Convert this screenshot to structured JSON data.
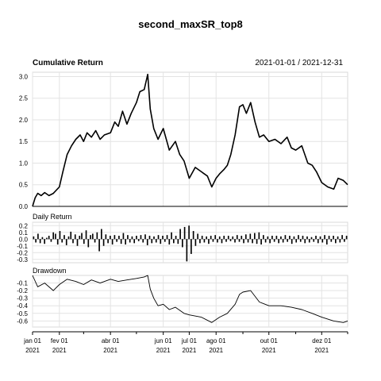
{
  "title": "second_maxSR_top8",
  "date_range": "2021-01-01 / 2021-12-31",
  "chart_data": [
    {
      "type": "line",
      "title": "Cumulative Return",
      "ylim": [
        0.0,
        3.1
      ],
      "yticks": [
        "0.0",
        "0.5",
        "1.0",
        "1.5",
        "2.0",
        "2.5",
        "3.0"
      ],
      "grid": true,
      "x": [
        "2021-01-01",
        "2021-01-04",
        "2021-01-07",
        "2021-01-11",
        "2021-01-15",
        "2021-01-20",
        "2021-01-25",
        "2021-02-01",
        "2021-02-05",
        "2021-02-10",
        "2021-02-15",
        "2021-02-20",
        "2021-02-25",
        "2021-03-01",
        "2021-03-05",
        "2021-03-10",
        "2021-03-15",
        "2021-03-20",
        "2021-03-25",
        "2021-04-01",
        "2021-04-06",
        "2021-04-10",
        "2021-04-15",
        "2021-04-20",
        "2021-04-25",
        "2021-05-01",
        "2021-05-05",
        "2021-05-10",
        "2021-05-14",
        "2021-05-17",
        "2021-05-21",
        "2021-05-26",
        "2021-06-01",
        "2021-06-08",
        "2021-06-15",
        "2021-06-20",
        "2021-06-25",
        "2021-07-01",
        "2021-07-08",
        "2021-07-15",
        "2021-07-22",
        "2021-07-27",
        "2021-08-01",
        "2021-08-05",
        "2021-08-10",
        "2021-08-14",
        "2021-08-18",
        "2021-08-23",
        "2021-08-28",
        "2021-09-01",
        "2021-09-05",
        "2021-09-10",
        "2021-09-15",
        "2021-09-20",
        "2021-09-25",
        "2021-10-01",
        "2021-10-08",
        "2021-10-15",
        "2021-10-22",
        "2021-10-27",
        "2021-11-01",
        "2021-11-08",
        "2021-11-15",
        "2021-11-20",
        "2021-11-25",
        "2021-12-01",
        "2021-12-08",
        "2021-12-15",
        "2021-12-20",
        "2021-12-26",
        "2021-12-31"
      ],
      "series": [
        {
          "values": [
            0.0,
            0.2,
            0.3,
            0.25,
            0.32,
            0.25,
            0.3,
            0.45,
            0.8,
            1.2,
            1.4,
            1.55,
            1.65,
            1.5,
            1.7,
            1.6,
            1.75,
            1.55,
            1.65,
            1.7,
            1.95,
            1.85,
            2.2,
            1.9,
            2.15,
            2.4,
            2.65,
            2.7,
            3.05,
            2.25,
            1.8,
            1.55,
            1.8,
            1.3,
            1.5,
            1.2,
            1.05,
            0.65,
            0.9,
            0.8,
            0.7,
            0.45,
            0.65,
            0.75,
            0.85,
            0.95,
            1.2,
            1.65,
            2.3,
            2.35,
            2.15,
            2.4,
            1.95,
            1.6,
            1.65,
            1.5,
            1.55,
            1.45,
            1.6,
            1.35,
            1.3,
            1.4,
            1.0,
            0.95,
            0.8,
            0.55,
            0.45,
            0.4,
            0.65,
            0.6,
            0.5
          ]
        }
      ]
    },
    {
      "type": "bar",
      "title": "Daily Return",
      "ylim": [
        -0.35,
        0.25
      ],
      "yticks": [
        "0.2",
        "0.1",
        "0.0",
        "-0.1",
        "-0.2",
        "-0.3"
      ],
      "grid": true,
      "series": [
        {
          "values": [
            0.04,
            -0.05,
            0.08,
            -0.06,
            0.03,
            -0.07,
            0.02,
            0.05,
            -0.04,
            0.1,
            0.08,
            -0.08,
            0.12,
            -0.05,
            0.06,
            -0.09,
            0.04,
            0.11,
            -0.06,
            0.07,
            -0.1,
            0.05,
            0.09,
            -0.07,
            0.13,
            -0.12,
            0.06,
            0.08,
            -0.05,
            0.1,
            -0.18,
            0.15,
            -0.1,
            0.07,
            -0.06,
            0.05,
            -0.08,
            0.06,
            -0.04,
            0.05,
            -0.07,
            0.09,
            -0.08,
            0.06,
            -0.05,
            0.04,
            -0.06,
            0.05,
            -0.03,
            0.06,
            -0.05,
            0.07,
            -0.09,
            0.05,
            -0.06,
            0.04,
            -0.05,
            0.06,
            -0.07,
            0.05,
            -0.04,
            0.06,
            -0.08,
            0.1,
            -0.06,
            0.05,
            -0.07,
            0.15,
            -0.12,
            0.18,
            -0.33,
            0.2,
            -0.22,
            0.12,
            -0.1,
            0.08,
            -0.06,
            0.05,
            -0.05,
            0.04,
            -0.07,
            0.05,
            -0.04,
            0.06,
            -0.05,
            0.04,
            -0.06,
            0.05,
            -0.04,
            0.05,
            -0.03,
            0.04,
            -0.05,
            0.06,
            -0.04,
            0.05,
            -0.06,
            0.07,
            -0.05,
            0.08,
            -0.06,
            0.09,
            -0.07,
            0.1,
            -0.08,
            0.06,
            -0.05,
            0.04,
            -0.06,
            0.05,
            -0.04,
            0.05,
            -0.06,
            0.04,
            -0.05,
            0.06,
            -0.04,
            0.05,
            -0.07,
            0.04,
            -0.05,
            0.06,
            -0.04,
            0.05,
            -0.06,
            0.04,
            -0.05,
            0.03,
            -0.04,
            0.05,
            -0.06,
            0.04,
            -0.05,
            0.06,
            -0.08,
            0.05,
            -0.04,
            0.05,
            -0.06,
            0.04,
            -0.05,
            0.06,
            -0.04,
            0.05
          ]
        }
      ]
    },
    {
      "type": "area",
      "title": "Drawdown",
      "ylim": [
        -0.68,
        0.0
      ],
      "yticks": [
        "-0.1",
        "-0.2",
        "-0.3",
        "-0.4",
        "-0.5",
        "-0.6"
      ],
      "grid": true,
      "x": [
        "2021-01-01",
        "2021-01-07",
        "2021-01-15",
        "2021-01-25",
        "2021-02-01",
        "2021-02-10",
        "2021-02-20",
        "2021-03-01",
        "2021-03-10",
        "2021-03-20",
        "2021-04-01",
        "2021-04-10",
        "2021-04-20",
        "2021-05-01",
        "2021-05-10",
        "2021-05-14",
        "2021-05-17",
        "2021-05-21",
        "2021-05-26",
        "2021-06-01",
        "2021-06-08",
        "2021-06-15",
        "2021-06-25",
        "2021-07-01",
        "2021-07-15",
        "2021-07-27",
        "2021-08-05",
        "2021-08-14",
        "2021-08-23",
        "2021-08-28",
        "2021-09-01",
        "2021-09-10",
        "2021-09-20",
        "2021-10-01",
        "2021-10-15",
        "2021-10-27",
        "2021-11-08",
        "2021-11-20",
        "2021-12-01",
        "2021-12-15",
        "2021-12-26",
        "2021-12-31"
      ],
      "series": [
        {
          "values": [
            0.0,
            -0.15,
            -0.1,
            -0.2,
            -0.12,
            -0.05,
            -0.08,
            -0.12,
            -0.06,
            -0.1,
            -0.05,
            -0.08,
            -0.06,
            -0.04,
            -0.02,
            0.0,
            -0.18,
            -0.3,
            -0.4,
            -0.38,
            -0.45,
            -0.42,
            -0.5,
            -0.52,
            -0.55,
            -0.62,
            -0.55,
            -0.5,
            -0.38,
            -0.25,
            -0.22,
            -0.2,
            -0.35,
            -0.4,
            -0.4,
            -0.42,
            -0.45,
            -0.5,
            -0.55,
            -0.6,
            -0.62,
            -0.6
          ]
        }
      ]
    }
  ],
  "x_axis": {
    "ticks": [
      {
        "date": "2021-01-01",
        "label": "jan 01",
        "year": "2021"
      },
      {
        "date": "2021-02-01",
        "label": "fev 01",
        "year": "2021"
      },
      {
        "date": "2021-04-01",
        "label": "abr 01",
        "year": "2021"
      },
      {
        "date": "2021-06-01",
        "label": "jun 01",
        "year": "2021"
      },
      {
        "date": "2021-07-01",
        "label": "jul 01",
        "year": "2021"
      },
      {
        "date": "2021-08-01",
        "label": "ago 01",
        "year": "2021"
      },
      {
        "date": "2021-10-01",
        "label": "out 01",
        "year": "2021"
      },
      {
        "date": "2021-12-01",
        "label": "dez 01",
        "year": "2021"
      }
    ],
    "minor_ticks": [
      "2021-03-01",
      "2021-05-01",
      "2021-09-01",
      "2021-11-01",
      "2021-12-31"
    ]
  }
}
